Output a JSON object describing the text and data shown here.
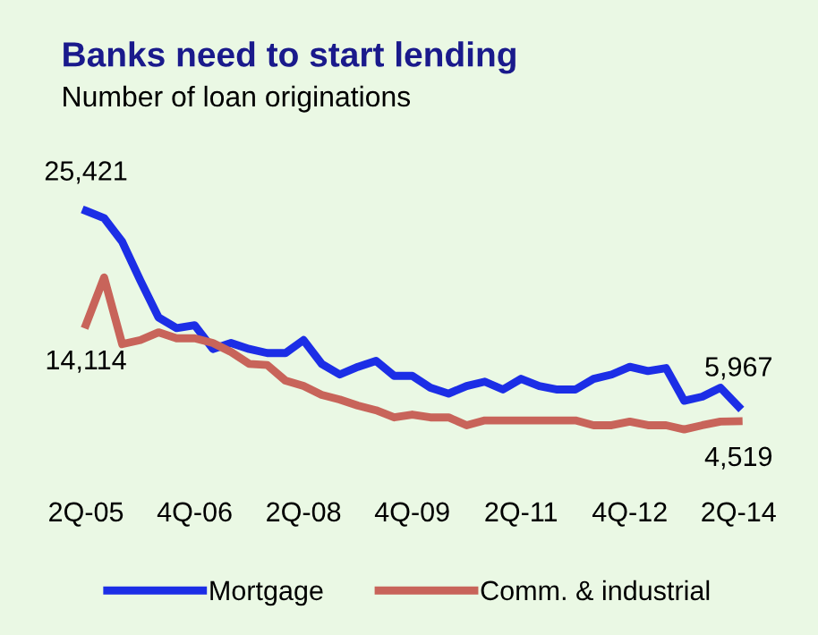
{
  "chart_data": {
    "type": "line",
    "title": "Banks need to start lending",
    "subtitle": "Number of loan originations",
    "categories": [
      "2Q-05",
      null,
      null,
      null,
      null,
      null,
      "4Q-06",
      null,
      null,
      null,
      null,
      null,
      "2Q-08",
      null,
      null,
      null,
      null,
      null,
      "4Q-09",
      null,
      null,
      null,
      null,
      null,
      "2Q-11",
      null,
      null,
      null,
      null,
      null,
      "4Q-12",
      null,
      null,
      null,
      null,
      null,
      "2Q-14"
    ],
    "series": [
      {
        "name": "Mortgage",
        "color": "#1c2ee6",
        "values": [
          25421,
          24700,
          22350,
          18500,
          14840,
          13770,
          14060,
          11700,
          12290,
          11700,
          11290,
          11290,
          12580,
          10220,
          9160,
          9920,
          10510,
          9030,
          9030,
          7850,
          7260,
          8020,
          8450,
          7670,
          8730,
          8020,
          7670,
          7670,
          8730,
          9160,
          9920,
          9510,
          9800,
          6550,
          6960,
          7850,
          5967
        ],
        "value_labels": [
          "25,421",
          null,
          null,
          null,
          null,
          null,
          null,
          null,
          null,
          null,
          null,
          null,
          null,
          null,
          null,
          null,
          null,
          null,
          null,
          null,
          null,
          null,
          null,
          null,
          null,
          null,
          null,
          null,
          null,
          null,
          null,
          null,
          null,
          null,
          null,
          null,
          "5,967"
        ]
      },
      {
        "name": "Comm. & industrial",
        "color": "#c8645a",
        "values": [
          14114,
          18800,
          12180,
          12580,
          13350,
          12760,
          12760,
          12290,
          11400,
          10220,
          10100,
          8560,
          8020,
          7140,
          6670,
          6070,
          5610,
          4900,
          5180,
          4900,
          4900,
          4120,
          4600,
          4600,
          4600,
          4600,
          4600,
          4600,
          4120,
          4120,
          4480,
          4120,
          4120,
          3710,
          4120,
          4480,
          4519
        ],
        "value_labels": [
          "14,114",
          null,
          null,
          null,
          null,
          null,
          null,
          null,
          null,
          null,
          null,
          null,
          null,
          null,
          null,
          null,
          null,
          null,
          null,
          null,
          null,
          null,
          null,
          null,
          null,
          null,
          null,
          null,
          null,
          null,
          null,
          null,
          null,
          null,
          null,
          null,
          "4,519"
        ]
      }
    ],
    "tick_labels": "x",
    "legend": "bottom",
    "grid": false,
    "line_style": "solid"
  }
}
